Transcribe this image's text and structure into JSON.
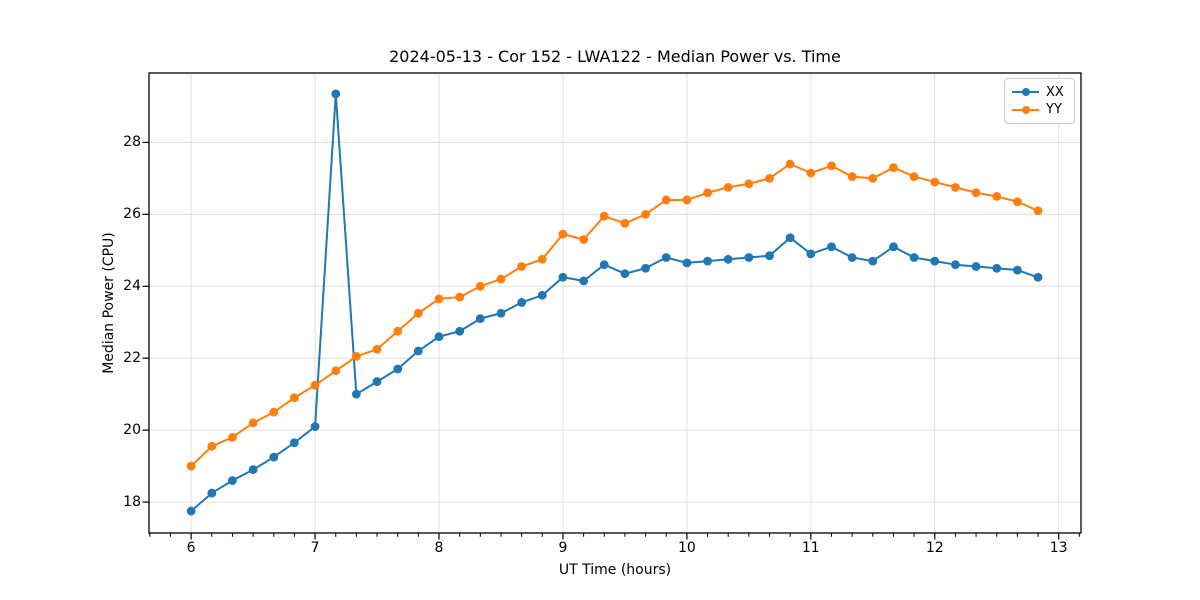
{
  "chart_data": {
    "type": "line",
    "title": "2024-05-13 - Cor 152 - LWA122 - Median Power vs. Time",
    "xlabel": "UT Time (hours)",
    "ylabel": "Median Power (CPU)",
    "xlim": [
      5.66,
      13.18
    ],
    "ylim": [
      17.14,
      29.93
    ],
    "x_ticks": [
      6,
      7,
      8,
      9,
      10,
      11,
      12,
      13
    ],
    "y_ticks": [
      18,
      20,
      22,
      24,
      26,
      28
    ],
    "x_minor_tick_divisions": 6,
    "grid": true,
    "grid_color": "#e0e0e0",
    "legend_position": "upper right",
    "marker": "circle",
    "x": [
      6,
      6.167,
      6.333,
      6.5,
      6.667,
      6.833,
      7,
      7.167,
      7.333,
      7.5,
      7.667,
      7.833,
      8,
      8.167,
      8.333,
      8.5,
      8.667,
      8.833,
      9,
      9.167,
      9.333,
      9.5,
      9.667,
      9.833,
      10,
      10.167,
      10.333,
      10.5,
      10.667,
      10.833,
      11,
      11.167,
      11.333,
      11.5,
      11.667,
      11.833,
      12,
      12.167,
      12.333,
      12.5,
      12.667,
      12.833
    ],
    "series": [
      {
        "name": "XX",
        "color": "#1f77b4",
        "values": [
          17.75,
          18.25,
          18.6,
          18.9,
          19.25,
          19.65,
          20.1,
          29.35,
          21.0,
          21.35,
          21.7,
          22.2,
          22.6,
          22.75,
          23.1,
          23.25,
          23.55,
          23.75,
          24.25,
          24.15,
          24.6,
          24.35,
          24.5,
          24.8,
          24.65,
          24.7,
          24.75,
          24.8,
          24.85,
          25.35,
          24.9,
          25.1,
          24.8,
          24.7,
          25.1,
          24.8,
          24.7,
          24.6,
          24.55,
          24.5,
          24.45,
          24.25
        ]
      },
      {
        "name": "YY",
        "color": "#ff7f0e",
        "values": [
          19.0,
          19.55,
          19.8,
          20.2,
          20.5,
          20.9,
          21.25,
          21.65,
          22.05,
          22.25,
          22.75,
          23.25,
          23.65,
          23.7,
          24.0,
          24.2,
          24.55,
          24.75,
          25.45,
          25.3,
          25.95,
          25.75,
          26.0,
          26.4,
          26.4,
          26.6,
          26.75,
          26.85,
          27.0,
          27.4,
          27.15,
          27.35,
          27.05,
          27.0,
          27.3,
          27.05,
          26.9,
          26.75,
          26.6,
          26.5,
          26.35,
          26.1
        ]
      }
    ]
  }
}
